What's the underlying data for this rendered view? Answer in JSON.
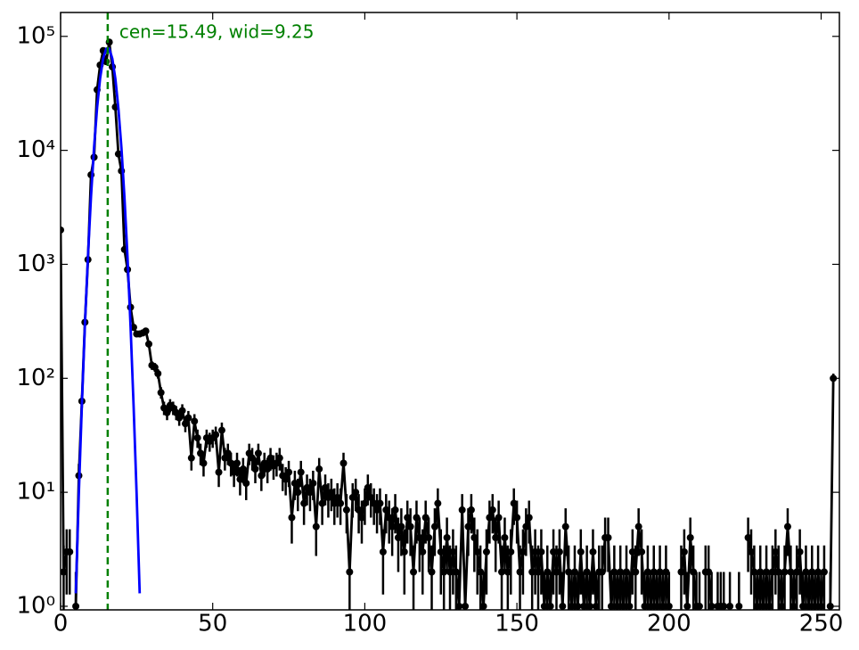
{
  "chart_data": {
    "type": "line",
    "log_y": true,
    "annotation": "cen=15.49, wid=9.25",
    "vline": 15.49,
    "vline_color": "#008000",
    "xlim": [
      0,
      256
    ],
    "ylim": [
      0.93,
      162000
    ],
    "xticks": [
      0,
      50,
      100,
      150,
      200,
      250
    ],
    "yticks": [
      {
        "value": 1,
        "label": "10⁰"
      },
      {
        "value": 10,
        "label": "10¹"
      },
      {
        "value": 100,
        "label": "10²"
      },
      {
        "value": 1000,
        "label": "10³"
      },
      {
        "value": 10000,
        "label": "10⁴"
      },
      {
        "value": 100000,
        "label": "10⁵"
      }
    ],
    "series": [
      {
        "color": "#000000",
        "markers": true,
        "error_bars": "sqrt",
        "x": [
          0,
          1,
          2,
          3,
          4,
          5,
          6,
          7,
          8,
          9,
          10,
          11,
          12,
          13,
          14,
          15,
          16,
          17,
          18,
          19,
          20,
          21,
          22,
          23,
          24,
          25,
          26,
          27,
          28,
          29,
          30,
          31,
          32,
          33,
          34,
          35,
          36,
          37,
          38,
          39,
          40,
          41,
          42,
          43,
          44,
          45,
          46,
          47,
          48,
          49,
          50,
          51,
          52,
          53,
          54,
          55,
          56,
          57,
          58,
          59,
          60,
          61,
          62,
          63,
          64,
          65,
          66,
          67,
          68,
          69,
          70,
          71,
          72,
          73,
          74,
          75,
          76,
          77,
          78,
          79,
          80,
          81,
          82,
          83,
          84,
          85,
          86,
          87,
          88,
          89,
          90,
          91,
          92,
          93,
          94,
          95,
          96,
          97,
          98,
          99,
          100,
          101,
          102,
          103,
          104,
          105,
          106,
          107,
          108,
          109,
          110,
          111,
          112,
          113,
          114,
          115,
          116,
          117,
          118,
          119,
          120,
          121,
          122,
          123,
          124,
          125,
          126,
          127,
          128,
          129,
          130,
          131,
          132,
          133,
          134,
          135,
          136,
          137,
          138,
          139,
          140,
          141,
          142,
          143,
          144,
          145,
          146,
          147,
          148,
          149,
          150,
          151,
          152,
          153,
          154,
          155,
          156,
          157,
          158,
          159,
          160,
          161,
          162,
          163,
          164,
          165,
          166,
          167,
          168,
          169,
          170,
          171,
          172,
          173,
          174,
          175,
          176,
          177,
          178,
          179,
          180,
          181,
          182,
          183,
          184,
          185,
          186,
          187,
          188,
          189,
          190,
          191,
          192,
          193,
          194,
          195,
          196,
          197,
          198,
          199,
          200,
          201,
          202,
          203,
          204,
          205,
          206,
          207,
          208,
          209,
          210,
          211,
          212,
          213,
          214,
          215,
          216,
          217,
          218,
          219,
          220,
          221,
          222,
          223,
          224,
          225,
          226,
          227,
          228,
          229,
          230,
          231,
          232,
          233,
          234,
          235,
          236,
          237,
          238,
          239,
          240,
          241,
          242,
          243,
          244,
          245,
          246,
          247,
          248,
          249,
          250,
          251,
          252,
          253,
          254,
          255
        ],
        "values": [
          2000,
          2,
          3,
          3,
          null,
          1,
          14,
          63,
          310,
          1100,
          6100,
          8700,
          34000,
          56000,
          75000,
          60000,
          89000,
          54000,
          24000,
          9300,
          6600,
          1350,
          900,
          420,
          280,
          245,
          245,
          250,
          260,
          200,
          130,
          125,
          110,
          75,
          55,
          50,
          58,
          55,
          50,
          45,
          52,
          40,
          45,
          20,
          42,
          30,
          22,
          18,
          30,
          28,
          30,
          32,
          15,
          35,
          20,
          22,
          18,
          15,
          18,
          13,
          16,
          12,
          22,
          20,
          16,
          22,
          14,
          18,
          16,
          20,
          17,
          18,
          20,
          14,
          13,
          15,
          6,
          12,
          10,
          15,
          8,
          11,
          10,
          12,
          5,
          16,
          8,
          11,
          9,
          10,
          8,
          9,
          8,
          18,
          7,
          2,
          9,
          10,
          7,
          6,
          8,
          11,
          9,
          8,
          7,
          8,
          3,
          7,
          6,
          5,
          7,
          4,
          5,
          3,
          6,
          5,
          2,
          6,
          4,
          3,
          6,
          4,
          2,
          5,
          8,
          3,
          2,
          4,
          2,
          3,
          2,
          1,
          7,
          1,
          5,
          7,
          4,
          3,
          2,
          1,
          3,
          6,
          7,
          4,
          6,
          2,
          4,
          2,
          3,
          8,
          6,
          2,
          3,
          5,
          6,
          2,
          3,
          2,
          3,
          1,
          2,
          1,
          3,
          2,
          3,
          1,
          5,
          2,
          1,
          2,
          1,
          3,
          1,
          2,
          1,
          3,
          1,
          2,
          2,
          4,
          4,
          1,
          2,
          1,
          2,
          1,
          2,
          1,
          3,
          2,
          5,
          3,
          1,
          2,
          1,
          2,
          1,
          2,
          1,
          2,
          1,
          null,
          null,
          null,
          2,
          3,
          1,
          4,
          2,
          1,
          1,
          null,
          2,
          2,
          1,
          null,
          1,
          1,
          1,
          null,
          1,
          null,
          null,
          1,
          null,
          null,
          4,
          3,
          2,
          1,
          2,
          1,
          2,
          1,
          2,
          3,
          2,
          1,
          2,
          5,
          2,
          1,
          2,
          3,
          1,
          2,
          1,
          2,
          1,
          2,
          1,
          2,
          null,
          1,
          100,
          null
        ]
      },
      {
        "color": "#0000ff",
        "markers": false,
        "x": [
          5,
          6,
          7,
          8,
          9,
          10,
          11,
          12,
          13,
          14,
          15,
          16,
          17,
          18,
          19,
          20,
          21,
          22,
          23,
          24,
          25,
          26
        ],
        "values": [
          1.3,
          9.8,
          59,
          294,
          1190,
          3940,
          10600,
          23700,
          43000,
          64000,
          78000,
          78000,
          63700,
          42600,
          23300,
          10500,
          3830,
          1150,
          285,
          57,
          9.5,
          1.3
        ]
      }
    ]
  }
}
